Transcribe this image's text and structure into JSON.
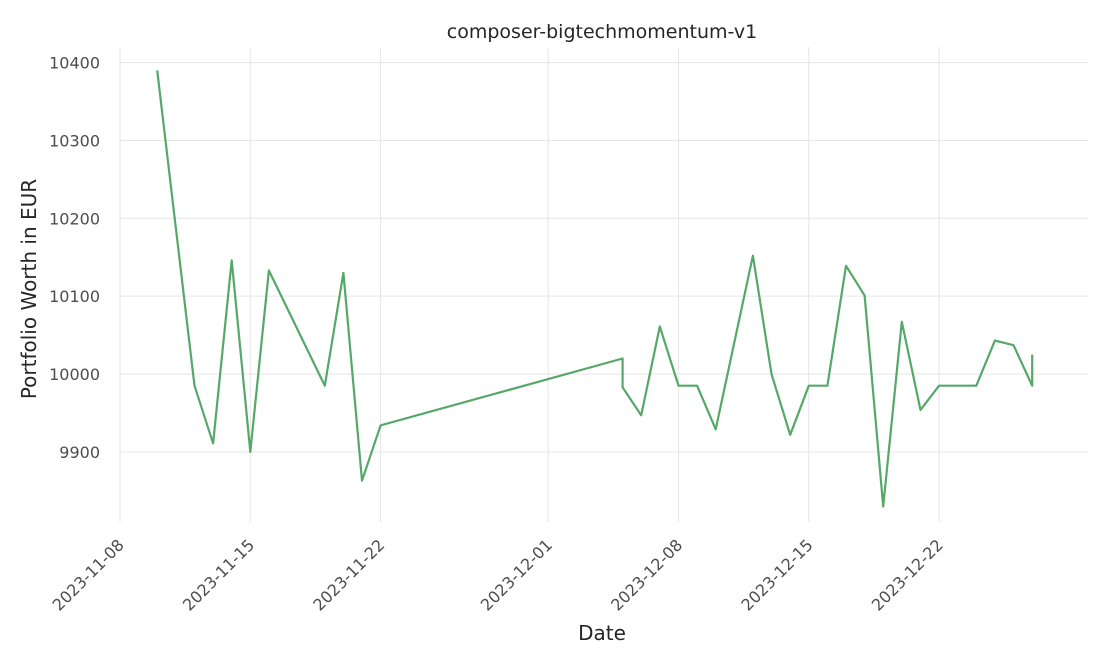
{
  "chart_data": {
    "type": "line",
    "title": "composer-bigtechmomentum-v1",
    "xlabel": "Date",
    "ylabel": "Portfolio Worth in EUR",
    "x_range": [
      "2023-11-08",
      "2024-01-01"
    ],
    "xlim": [
      "2023-11-08",
      "2023-12-30"
    ],
    "ylim": [
      9810,
      10420
    ],
    "grid": true,
    "x_ticks": [
      "2023-11-08",
      "2023-11-15",
      "2023-11-22",
      "2023-12-01",
      "2023-12-08",
      "2023-12-15",
      "2023-12-22"
    ],
    "y_ticks": [
      9900,
      10000,
      10100,
      10200,
      10300,
      10400
    ],
    "series": [
      {
        "name": "composer-bigtechmomentum-v1",
        "color": "#55a868",
        "points": [
          {
            "x": "2023-11-10",
            "y": 10390
          },
          {
            "x": "2023-11-12",
            "y": 9985
          },
          {
            "x": "2023-11-13",
            "y": 9911
          },
          {
            "x": "2023-11-14",
            "y": 10146
          },
          {
            "x": "2023-11-15",
            "y": 9900
          },
          {
            "x": "2023-11-16",
            "y": 10133
          },
          {
            "x": "2023-11-19",
            "y": 9985
          },
          {
            "x": "2023-11-20",
            "y": 10130
          },
          {
            "x": "2023-11-21",
            "y": 9863
          },
          {
            "x": "2023-11-22",
            "y": 9934
          },
          {
            "x": "2023-12-05",
            "y": 10020
          },
          {
            "x": "2023-12-05",
            "y": 9983
          },
          {
            "x": "2023-12-06",
            "y": 9947
          },
          {
            "x": "2023-12-07",
            "y": 10061
          },
          {
            "x": "2023-12-08",
            "y": 9985
          },
          {
            "x": "2023-12-09",
            "y": 9985
          },
          {
            "x": "2023-12-10",
            "y": 9929
          },
          {
            "x": "2023-12-12",
            "y": 10152
          },
          {
            "x": "2023-12-13",
            "y": 10000
          },
          {
            "x": "2023-12-14",
            "y": 9922
          },
          {
            "x": "2023-12-15",
            "y": 9985
          },
          {
            "x": "2023-12-16",
            "y": 9985
          },
          {
            "x": "2023-12-17",
            "y": 10139
          },
          {
            "x": "2023-12-18",
            "y": 10101
          },
          {
            "x": "2023-12-19",
            "y": 9830
          },
          {
            "x": "2023-12-20",
            "y": 10067
          },
          {
            "x": "2023-12-21",
            "y": 9954
          },
          {
            "x": "2023-12-22",
            "y": 9985
          },
          {
            "x": "2023-12-23",
            "y": 9985
          },
          {
            "x": "2023-12-24",
            "y": 9985
          },
          {
            "x": "2023-12-25",
            "y": 10043
          },
          {
            "x": "2023-12-26",
            "y": 10037
          },
          {
            "x": "2023-12-27",
            "y": 9985
          },
          {
            "x": "2023-12-27",
            "y": 10025
          }
        ]
      }
    ]
  }
}
